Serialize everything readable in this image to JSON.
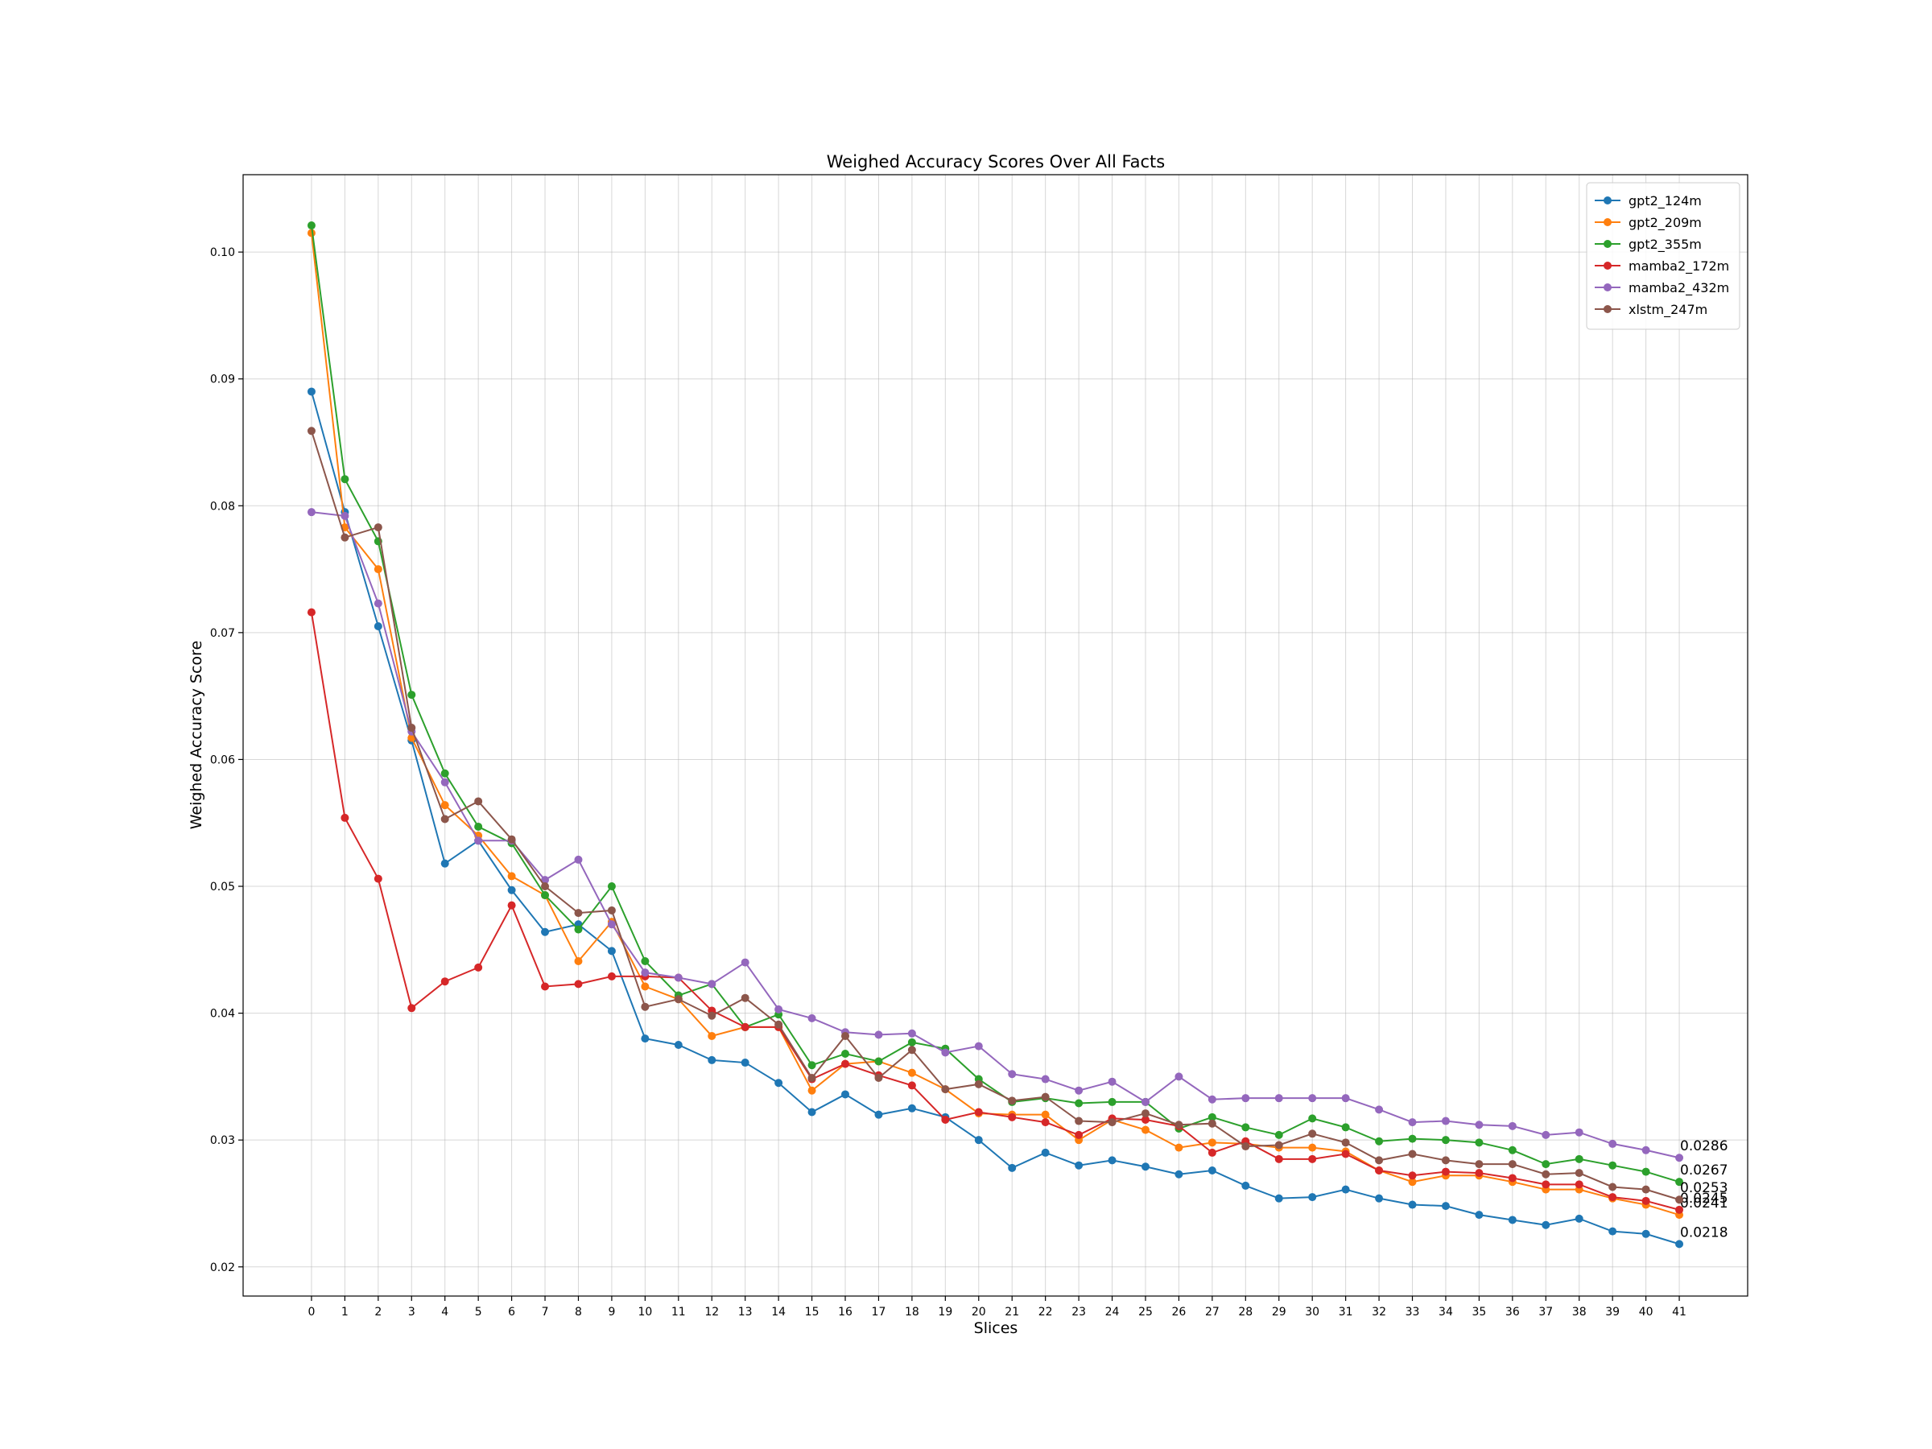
{
  "chart_data": {
    "type": "line",
    "title": "Weighed Accuracy Scores Over All Facts",
    "xlabel": "Slices",
    "ylabel": "Weighed Accuracy Score",
    "xlim": [
      -2.05,
      43.05
    ],
    "ylim": [
      0.0177,
      0.1061
    ],
    "yticks": [
      0.02,
      0.03,
      0.04,
      0.05,
      0.06,
      0.07,
      0.08,
      0.09,
      0.1
    ],
    "ytick_labels": [
      "0.02",
      "0.03",
      "0.04",
      "0.05",
      "0.06",
      "0.07",
      "0.08",
      "0.09",
      "0.10"
    ],
    "x": [
      0,
      1,
      2,
      3,
      4,
      5,
      6,
      7,
      8,
      9,
      10,
      11,
      12,
      13,
      14,
      15,
      16,
      17,
      18,
      19,
      20,
      21,
      22,
      23,
      24,
      25,
      26,
      27,
      28,
      29,
      30,
      31,
      32,
      33,
      34,
      35,
      36,
      37,
      38,
      39,
      40,
      41
    ],
    "xtick_labels": [
      "0",
      "1",
      "2",
      "3",
      "4",
      "5",
      "6",
      "7",
      "8",
      "9",
      "10",
      "11",
      "12",
      "13",
      "14",
      "15",
      "16",
      "17",
      "18",
      "19",
      "20",
      "21",
      "22",
      "23",
      "24",
      "25",
      "26",
      "27",
      "28",
      "29",
      "30",
      "31",
      "32",
      "33",
      "34",
      "35",
      "36",
      "37",
      "38",
      "39",
      "40",
      "41"
    ],
    "grid": true,
    "legend": "top-right",
    "series": [
      {
        "name": "gpt2_124m",
        "color": "#1f77b4",
        "end_label": "0.0218",
        "values": [
          0.089,
          0.0795,
          0.0705,
          0.0615,
          0.0518,
          0.0536,
          0.0497,
          0.0464,
          0.047,
          0.0449,
          0.038,
          0.0375,
          0.0363,
          0.0361,
          0.0345,
          0.0322,
          0.0336,
          0.032,
          0.0325,
          0.0318,
          0.03,
          0.0278,
          0.029,
          0.028,
          0.0284,
          0.0279,
          0.0273,
          0.0276,
          0.0264,
          0.0254,
          0.0255,
          0.0261,
          0.0254,
          0.0249,
          0.0248,
          0.0241,
          0.0237,
          0.0233,
          0.0238,
          0.0228,
          0.0226,
          0.0218
        ]
      },
      {
        "name": "gpt2_209m",
        "color": "#ff7f0e",
        "end_label": "0.0241",
        "values": [
          0.1015,
          0.0783,
          0.075,
          0.0617,
          0.0564,
          0.054,
          0.0508,
          0.0493,
          0.0441,
          0.0472,
          0.0421,
          0.0411,
          0.0382,
          0.0389,
          0.0389,
          0.0339,
          0.036,
          0.0362,
          0.0353,
          0.034,
          0.0321,
          0.032,
          0.032,
          0.03,
          0.0316,
          0.0308,
          0.0294,
          0.0298,
          0.0297,
          0.0294,
          0.0294,
          0.0291,
          0.0276,
          0.0267,
          0.0272,
          0.0272,
          0.0267,
          0.0261,
          0.0261,
          0.0254,
          0.0249,
          0.0241
        ]
      },
      {
        "name": "gpt2_355m",
        "color": "#2ca02c",
        "end_label": "0.0267",
        "values": [
          0.1021,
          0.0821,
          0.0772,
          0.0651,
          0.0589,
          0.0547,
          0.0534,
          0.0493,
          0.0466,
          0.05,
          0.0441,
          0.0414,
          0.0423,
          0.0389,
          0.0399,
          0.0359,
          0.0368,
          0.0362,
          0.0377,
          0.0372,
          0.0348,
          0.033,
          0.0333,
          0.0329,
          0.033,
          0.033,
          0.0309,
          0.0318,
          0.031,
          0.0304,
          0.0317,
          0.031,
          0.0299,
          0.0301,
          0.03,
          0.0298,
          0.0292,
          0.0281,
          0.0285,
          0.028,
          0.0275,
          0.0267
        ]
      },
      {
        "name": "mamba2_172m",
        "color": "#d62728",
        "end_label": "0.0245",
        "values": [
          0.0716,
          0.0554,
          0.0506,
          0.0404,
          0.0425,
          0.0436,
          0.0485,
          0.0421,
          0.0423,
          0.0429,
          0.0429,
          0.0428,
          0.0402,
          0.0389,
          0.0389,
          0.0348,
          0.036,
          0.0351,
          0.0343,
          0.0316,
          0.0322,
          0.0318,
          0.0314,
          0.0304,
          0.0317,
          0.0316,
          0.0311,
          0.029,
          0.0299,
          0.0285,
          0.0285,
          0.0289,
          0.0276,
          0.0272,
          0.0275,
          0.0274,
          0.027,
          0.0265,
          0.0265,
          0.0255,
          0.0252,
          0.0245
        ]
      },
      {
        "name": "mamba2_432m",
        "color": "#9467bd",
        "end_label": "0.0286",
        "values": [
          0.0795,
          0.0792,
          0.0723,
          0.0622,
          0.0582,
          0.0536,
          0.0536,
          0.0505,
          0.0521,
          0.047,
          0.0432,
          0.0428,
          0.0423,
          0.044,
          0.0403,
          0.0396,
          0.0385,
          0.0383,
          0.0384,
          0.0369,
          0.0374,
          0.0352,
          0.0348,
          0.0339,
          0.0346,
          0.033,
          0.035,
          0.0332,
          0.0333,
          0.0333,
          0.0333,
          0.0333,
          0.0324,
          0.0314,
          0.0315,
          0.0312,
          0.0311,
          0.0304,
          0.0306,
          0.0297,
          0.0292,
          0.0286
        ]
      },
      {
        "name": "xlstm_247m",
        "color": "#8c564b",
        "end_label": "0.0253",
        "values": [
          0.0859,
          0.0775,
          0.0783,
          0.0625,
          0.0553,
          0.0567,
          0.0537,
          0.05,
          0.0479,
          0.0481,
          0.0405,
          0.0411,
          0.0398,
          0.0412,
          0.0391,
          0.0349,
          0.0382,
          0.0349,
          0.0371,
          0.034,
          0.0344,
          0.0331,
          0.0334,
          0.0315,
          0.0314,
          0.0321,
          0.0312,
          0.0313,
          0.0295,
          0.0296,
          0.0305,
          0.0298,
          0.0284,
          0.0289,
          0.0284,
          0.0281,
          0.0281,
          0.0273,
          0.0274,
          0.0263,
          0.0261,
          0.0253
        ]
      }
    ]
  }
}
